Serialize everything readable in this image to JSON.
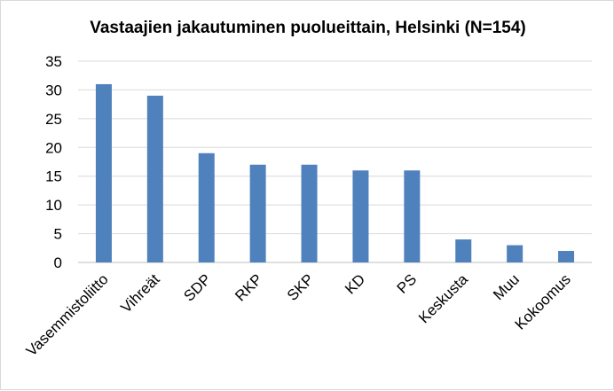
{
  "chart_data": {
    "type": "bar",
    "title": "Vastaajien jakautuminen puolueittain, Helsinki (N=154)",
    "categories": [
      "Vasemmistoliitto",
      "Vihreät",
      "SDP",
      "RKP",
      "SKP",
      "KD",
      "PS",
      "Keskusta",
      "Muu",
      "Kokoomus"
    ],
    "series": [
      {
        "values": [
          31,
          29,
          19,
          17,
          17,
          16,
          16,
          4,
          3,
          2
        ]
      }
    ],
    "xlabel": "",
    "ylabel": "",
    "ylim": [
      0,
      35
    ],
    "yticks": [
      0,
      5,
      10,
      15,
      20,
      25,
      30,
      35
    ],
    "grid": true,
    "legend": "none",
    "colors": {
      "bar": "#4f81bd",
      "grid": "#d9d9d9",
      "axis": "#bfbfbf"
    }
  }
}
